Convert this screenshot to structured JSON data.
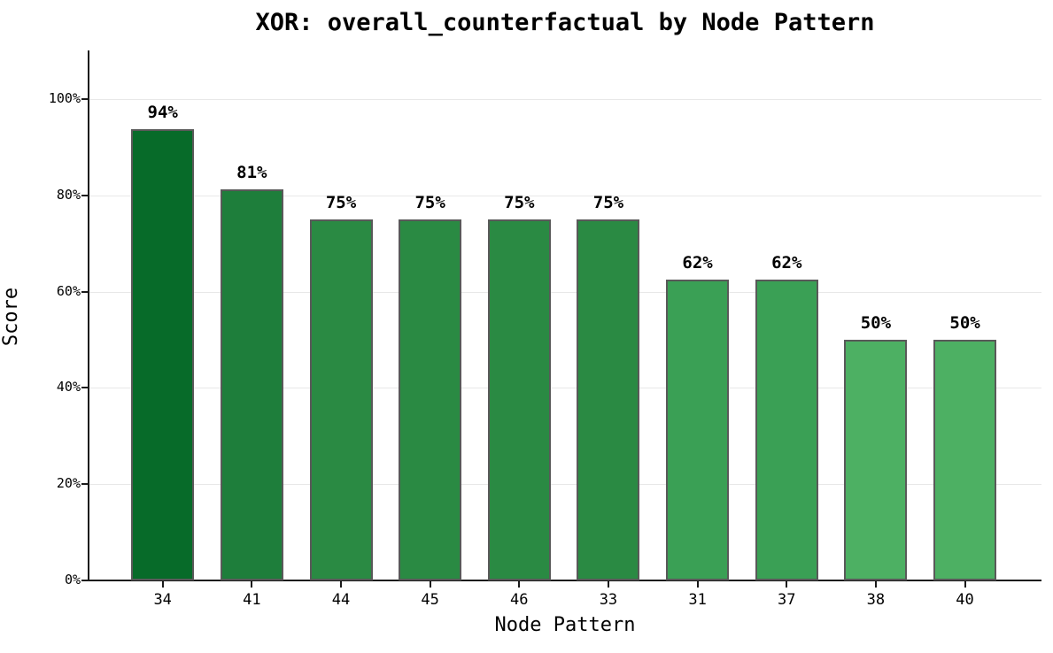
{
  "title": "XOR: overall_counterfactual by Node Pattern",
  "chart_data": {
    "type": "bar",
    "title": "XOR: overall_counterfactual by Node Pattern",
    "xlabel": "Node Pattern",
    "ylabel": "Score",
    "categories": [
      "34",
      "41",
      "44",
      "45",
      "46",
      "33",
      "31",
      "37",
      "38",
      "40"
    ],
    "values": [
      93.75,
      81.25,
      75,
      75,
      75,
      75,
      62.5,
      62.5,
      50,
      50
    ],
    "bar_labels": [
      "94%",
      "81%",
      "75%",
      "75%",
      "75%",
      "75%",
      "62%",
      "62%",
      "50%",
      "50%"
    ],
    "bar_colors": [
      "#076b29",
      "#1e7e3b",
      "#2a8a43",
      "#2a8a43",
      "#2a8a43",
      "#2a8a43",
      "#3aa055",
      "#3aa055",
      "#4db063",
      "#4db063"
    ],
    "bar_edge_color": "#595959",
    "y_ticks": [
      {
        "value": 0,
        "label": "0%"
      },
      {
        "value": 20,
        "label": "20%"
      },
      {
        "value": 40,
        "label": "40%"
      },
      {
        "value": 60,
        "label": "60%"
      },
      {
        "value": 80,
        "label": "80%"
      },
      {
        "value": 100,
        "label": "100%"
      }
    ],
    "ylim": [
      0,
      110
    ],
    "grid": "horizontal",
    "gridline_color": "#e8e8e8",
    "legend": "none",
    "background_color": "#ffffff"
  }
}
